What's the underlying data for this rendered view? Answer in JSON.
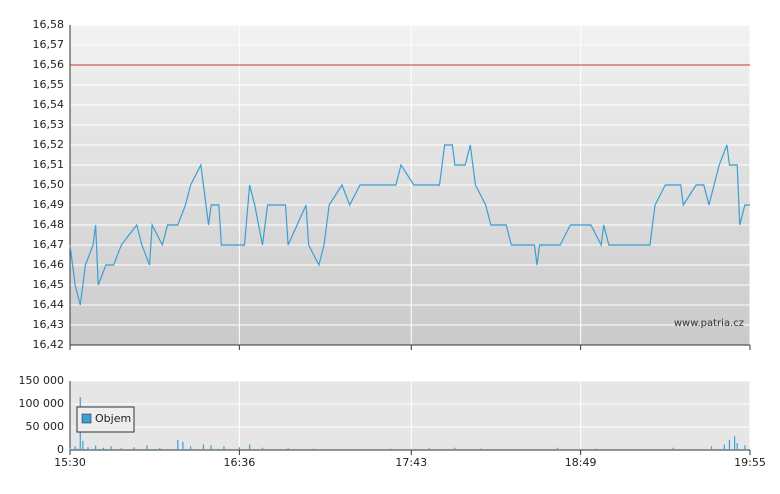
{
  "chart_data": [
    {
      "type": "line",
      "annotation": "www.patria.cz",
      "xlim": [
        "15:30",
        "19:55"
      ],
      "ylim": [
        16.42,
        16.58
      ],
      "yticks": [
        {
          "value": 16.42,
          "label": "16,42"
        },
        {
          "value": 16.43,
          "label": "16,43"
        },
        {
          "value": 16.44,
          "label": "16,44"
        },
        {
          "value": 16.45,
          "label": "16,45"
        },
        {
          "value": 16.46,
          "label": "16,46"
        },
        {
          "value": 16.47,
          "label": "16,47"
        },
        {
          "value": 16.48,
          "label": "16,48"
        },
        {
          "value": 16.49,
          "label": "16,49"
        },
        {
          "value": 16.5,
          "label": "16,50"
        },
        {
          "value": 16.51,
          "label": "16,51"
        },
        {
          "value": 16.52,
          "label": "16,52"
        },
        {
          "value": 16.53,
          "label": "16,53"
        },
        {
          "value": 16.54,
          "label": "16,54"
        },
        {
          "value": 16.55,
          "label": "16,55"
        },
        {
          "value": 16.56,
          "label": "16,56"
        },
        {
          "value": 16.57,
          "label": "16,57"
        },
        {
          "value": 16.58,
          "label": "16,58"
        }
      ],
      "grid": true,
      "reference_line": {
        "value": 16.56,
        "color": "#cc3333"
      },
      "series": [
        {
          "color": "#3d9fd3",
          "x": [
            "15:30",
            "15:32",
            "15:34",
            "15:36",
            "15:39",
            "15:40",
            "15:41",
            "15:44",
            "15:47",
            "15:50",
            "15:56",
            "15:58",
            "16:01",
            "16:02",
            "16:06",
            "16:08",
            "16:12",
            "16:15",
            "16:17",
            "16:21",
            "16:23",
            "16:24",
            "16:25",
            "16:28",
            "16:29",
            "16:38",
            "16:40",
            "16:42",
            "16:45",
            "16:47",
            "16:54",
            "16:55",
            "17:02",
            "17:03",
            "17:07",
            "17:09",
            "17:11",
            "17:16",
            "17:19",
            "17:23",
            "17:37",
            "17:39",
            "17:44",
            "17:54",
            "17:56",
            "17:59",
            "18:00",
            "18:04",
            "18:06",
            "18:08",
            "18:12",
            "18:14",
            "18:20",
            "18:22",
            "18:31",
            "18:32",
            "18:33",
            "18:39",
            "18:41",
            "18:45",
            "18:53",
            "18:57",
            "18:58",
            "19:00",
            "19:16",
            "19:18",
            "19:22",
            "19:28",
            "19:29",
            "19:34",
            "19:37",
            "19:39",
            "19:41",
            "19:43",
            "19:46",
            "19:47",
            "19:50",
            "19:51",
            "19:53",
            "19:55"
          ],
          "values": [
            16.47,
            16.45,
            16.44,
            16.46,
            16.47,
            16.48,
            16.45,
            16.46,
            16.46,
            16.47,
            16.48,
            16.47,
            16.46,
            16.48,
            16.47,
            16.48,
            16.48,
            16.49,
            16.5,
            16.51,
            16.49,
            16.48,
            16.49,
            16.49,
            16.47,
            16.47,
            16.5,
            16.49,
            16.47,
            16.49,
            16.49,
            16.47,
            16.49,
            16.47,
            16.46,
            16.47,
            16.49,
            16.5,
            16.49,
            16.5,
            16.5,
            16.51,
            16.5,
            16.5,
            16.52,
            16.52,
            16.51,
            16.51,
            16.52,
            16.5,
            16.49,
            16.48,
            16.48,
            16.47,
            16.47,
            16.46,
            16.47,
            16.47,
            16.47,
            16.48,
            16.48,
            16.47,
            16.48,
            16.47,
            16.47,
            16.49,
            16.5,
            16.5,
            16.49,
            16.5,
            16.5,
            16.49,
            16.5,
            16.51,
            16.52,
            16.51,
            16.51,
            16.48,
            16.49,
            16.49
          ]
        }
      ]
    },
    {
      "type": "bar",
      "xlim": [
        "15:30",
        "19:55"
      ],
      "xticks": [
        "15:30",
        "16:36",
        "17:43",
        "18:49",
        "19:55"
      ],
      "ylim": [
        0,
        150000
      ],
      "yticks": [
        0,
        {
          "value": 50000,
          "label": "50 000"
        },
        {
          "value": 100000,
          "label": "100 000"
        },
        {
          "value": 150000,
          "label": "150 000"
        }
      ],
      "grid": true,
      "legend": "top-left",
      "series": [
        {
          "name": "Objem",
          "color": "#3d9fd3",
          "x": [
            "15:30",
            "15:32",
            "15:33",
            "15:34",
            "15:35",
            "15:37",
            "15:40",
            "15:43",
            "15:46",
            "15:50",
            "15:55",
            "16:00",
            "16:05",
            "16:12",
            "16:14",
            "16:17",
            "16:22",
            "16:25",
            "16:30",
            "16:36",
            "16:40",
            "16:45",
            "16:55",
            "17:05",
            "17:20",
            "17:35",
            "17:50",
            "18:00",
            "18:10",
            "18:25",
            "18:40",
            "18:55",
            "19:10",
            "19:25",
            "19:40",
            "19:45",
            "19:47",
            "19:49",
            "19:50",
            "19:53"
          ],
          "values": [
            5000,
            8000,
            3000,
            115000,
            20000,
            6000,
            10000,
            5000,
            8000,
            4000,
            6000,
            10000,
            5000,
            22000,
            18000,
            8000,
            12000,
            10000,
            8000,
            6000,
            12000,
            5000,
            4000,
            3000,
            2000,
            3000,
            4000,
            5000,
            3000,
            2000,
            5000,
            3000,
            2000,
            5000,
            8000,
            12000,
            22000,
            30000,
            15000,
            10000
          ]
        }
      ]
    }
  ]
}
